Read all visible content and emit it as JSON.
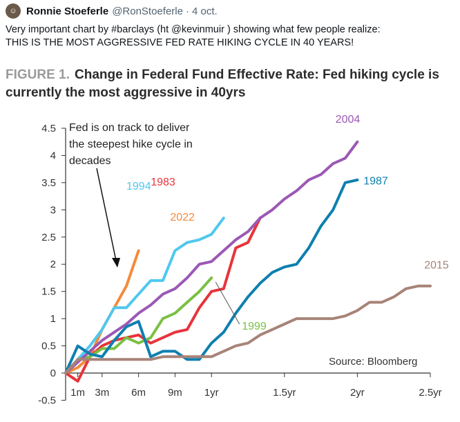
{
  "tweet": {
    "author": "Ronnie Stoeferle",
    "handle": "@RonStoeferle",
    "separator": "·",
    "date": "4 oct.",
    "text_line1": "Very important chart by #barclays (ht @kevinmuir ) showing what few people realize:",
    "text_line2": "THIS IS THE MOST AGGRESSIVE FED RATE HIKING CYCLE IN 40 YEARS!"
  },
  "chart_data": {
    "type": "line",
    "figure_label": "FIGURE 1.",
    "title_line1": "Change in Federal Fund Effective Rate: Fed hiking cycle is",
    "title_line2": "currently the most aggressive in 40yrs",
    "annotation": [
      "Fed is on track to deliver",
      "the steepest hike cycle in",
      "decades"
    ],
    "source": "Source: Bloomberg",
    "ylim": [
      -0.5,
      4.5
    ],
    "yticks": [
      "4.5",
      "4",
      "3.5",
      "3",
      "2.5",
      "2",
      "1.5",
      "1",
      "0.5",
      "0",
      "-0.5"
    ],
    "ytick_values": [
      4.5,
      4,
      3.5,
      3,
      2.5,
      2,
      1.5,
      1,
      0.5,
      0,
      -0.5
    ],
    "xlim": [
      0,
      30
    ],
    "xticks": [
      "1m",
      "3m",
      "6m",
      "9m",
      "1yr",
      "1.5yr",
      "2yr",
      "2.5yr"
    ],
    "xtick_values": [
      1,
      3,
      6,
      9,
      12,
      18,
      24,
      30
    ],
    "series": [
      {
        "name": "2022",
        "color": "#f58a3a",
        "x": [
          0,
          1,
          2,
          3,
          4,
          5,
          6
        ],
        "y": [
          0,
          0.1,
          0.3,
          0.8,
          1.2,
          1.6,
          2.25
        ]
      },
      {
        "name": "1994",
        "color": "#4fc8ef",
        "x": [
          0,
          1,
          2,
          3,
          4,
          5,
          6,
          7,
          8,
          9,
          10,
          11,
          12,
          13
        ],
        "y": [
          0,
          0.25,
          0.5,
          0.8,
          1.2,
          1.2,
          1.45,
          1.7,
          1.7,
          2.25,
          2.4,
          2.45,
          2.55,
          2.85
        ]
      },
      {
        "name": "1983",
        "color": "#e8343a",
        "x": [
          0,
          1,
          2,
          3,
          4,
          5,
          6,
          7,
          8,
          9,
          10,
          11,
          12,
          13,
          14,
          15,
          16
        ],
        "y": [
          0,
          -0.15,
          0.3,
          0.5,
          0.6,
          0.65,
          0.7,
          0.55,
          0.65,
          0.75,
          0.8,
          1.2,
          1.5,
          1.55,
          2.3,
          2.4,
          2.85
        ]
      },
      {
        "name": "1999",
        "color": "#7ac043",
        "x": [
          0,
          1,
          2,
          3,
          4,
          5,
          6,
          7,
          8,
          9,
          10,
          11,
          12
        ],
        "y": [
          0,
          0.25,
          0.3,
          0.45,
          0.45,
          0.65,
          0.55,
          0.65,
          1.0,
          1.1,
          1.3,
          1.5,
          1.75
        ]
      },
      {
        "name": "2004",
        "color": "#9b58b5",
        "x": [
          0,
          1,
          2,
          3,
          4,
          5,
          6,
          7,
          8,
          9,
          10,
          11,
          12,
          13,
          14,
          15,
          16,
          17,
          18,
          19,
          20,
          21,
          22,
          23,
          24
        ],
        "y": [
          0,
          0.2,
          0.4,
          0.6,
          0.75,
          0.9,
          1.1,
          1.25,
          1.45,
          1.55,
          1.75,
          2.0,
          2.05,
          2.25,
          2.45,
          2.6,
          2.85,
          3.0,
          3.2,
          3.35,
          3.55,
          3.65,
          3.85,
          3.95,
          4.25
        ]
      },
      {
        "name": "1987",
        "color": "#0e7fb0",
        "x": [
          0,
          1,
          2,
          3,
          4,
          5,
          6,
          7,
          8,
          9,
          10,
          11,
          12,
          13,
          14,
          15,
          16,
          17,
          18,
          19,
          20,
          21,
          22,
          23,
          24
        ],
        "y": [
          0,
          0.5,
          0.35,
          0.3,
          0.6,
          0.85,
          0.95,
          0.3,
          0.4,
          0.4,
          0.25,
          0.25,
          0.55,
          0.75,
          1.1,
          1.4,
          1.65,
          1.85,
          1.95,
          2.0,
          2.3,
          2.7,
          3.0,
          3.5,
          3.55
        ]
      },
      {
        "name": "2015",
        "color": "#a88378",
        "x": [
          0,
          1,
          2,
          3,
          4,
          5,
          6,
          7,
          8,
          9,
          10,
          11,
          12,
          13,
          14,
          15,
          16,
          17,
          18,
          19,
          20,
          21,
          22,
          23,
          24,
          25,
          26,
          27,
          28,
          29,
          30
        ],
        "y": [
          0,
          0.25,
          0.25,
          0.25,
          0.25,
          0.25,
          0.25,
          0.25,
          0.3,
          0.3,
          0.3,
          0.3,
          0.3,
          0.4,
          0.5,
          0.55,
          0.7,
          0.8,
          0.9,
          1.0,
          1.0,
          1.0,
          1.0,
          1.05,
          1.15,
          1.3,
          1.3,
          1.4,
          1.55,
          1.6,
          1.6
        ]
      }
    ],
    "label_colors": {
      "figure": "#9a9a9a",
      "title": "#2b2b2b",
      "axis": "#333333"
    },
    "grid": false
  }
}
